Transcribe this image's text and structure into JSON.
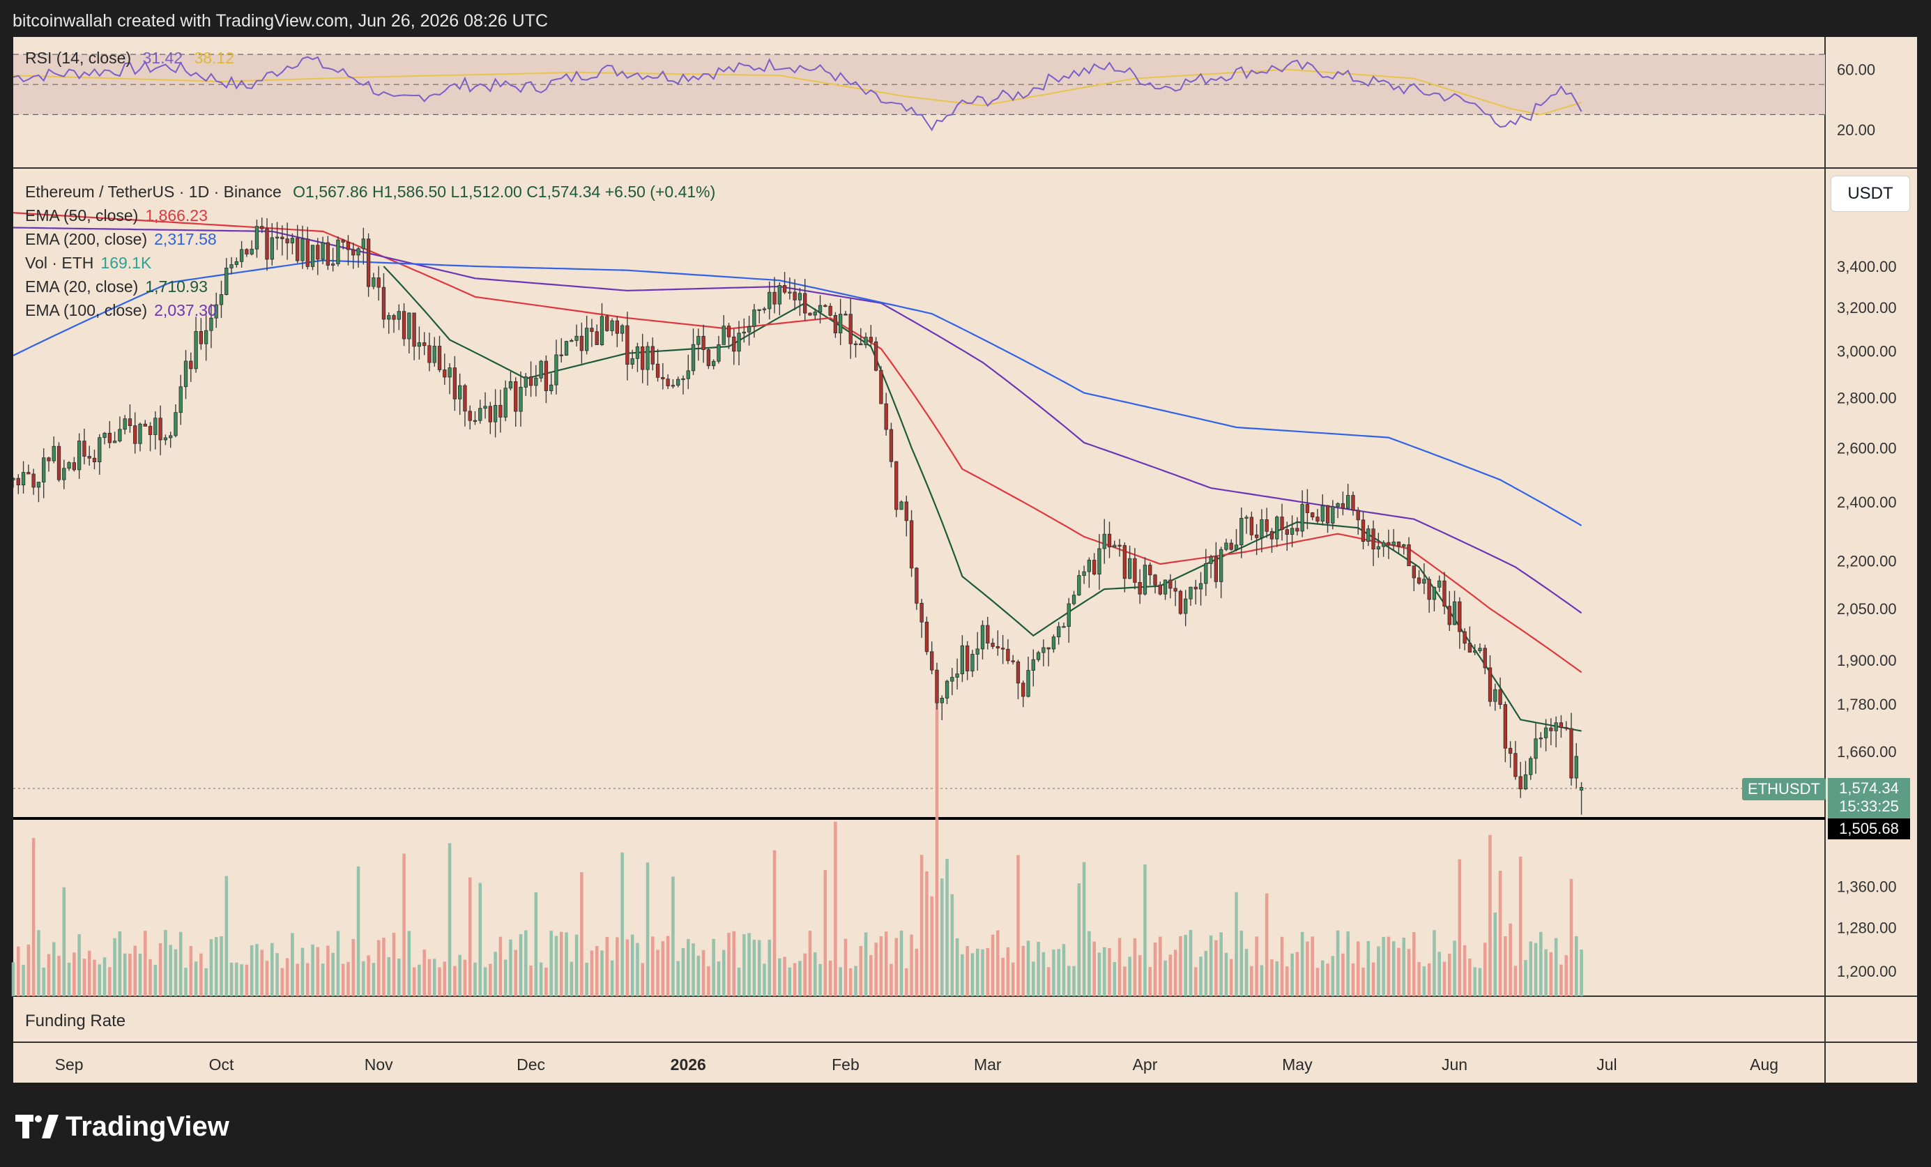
{
  "header": {
    "attribution": "bitcoinwallah created with TradingView.com, Jun 26, 2026 08:26 UTC"
  },
  "rsi_panel": {
    "label": "RSI (14, close)",
    "value": "31.42",
    "ma_value": "38.12",
    "ticks": [
      "60.00",
      "20.00"
    ]
  },
  "legend": {
    "symbol_line": "Ethereum / TetherUS · 1D · Binance",
    "ohlc": "O1,567.86  H1,586.50  L1,512.00  C1,574.34  +6.50 (+0.41%)",
    "items": [
      {
        "label": "EMA (50, close)",
        "value": "1,866.23",
        "color": "#e0373f"
      },
      {
        "label": "EMA (200, close)",
        "value": "2,317.58",
        "color": "#2f62e6"
      },
      {
        "label": "Vol · ETH",
        "value": "169.1K",
        "color": "#2aa298"
      },
      {
        "label": "EMA (20, close)",
        "value": "1,710.93",
        "color": "#1c5a3a"
      },
      {
        "label": "EMA (100, close)",
        "value": "2,037.30",
        "color": "#6a36b6"
      }
    ]
  },
  "currency_button": "USDT",
  "funding_label": "Funding Rate",
  "ticker_tag": "ETHUSDT",
  "last_price": "1,574.34",
  "countdown": "15:33:25",
  "horizontal_level": "1,505.68",
  "footer_brand": "TradingView",
  "colors": {
    "up": "#5d9c85",
    "down": "#d6776c",
    "background": "#f2e3d3",
    "frame": "#1e1e1e"
  },
  "chart_data": {
    "type": "candlestick",
    "symbol": "ETHUSDT",
    "interval": "1D",
    "y_axis_ticks": [
      3400,
      3200,
      3000,
      2800,
      2600,
      2400,
      2200,
      2050,
      1900,
      1780,
      1660,
      1360,
      1280,
      1200
    ],
    "y_axis_labels": [
      "3,400.00",
      "3,200.00",
      "3,000.00",
      "2,800.00",
      "2,600.00",
      "2,400.00",
      "2,200.00",
      "2,050.00",
      "1,900.00",
      "1,780.00",
      "1,660.00",
      "1,360.00",
      "1,280.00",
      "1,200.00"
    ],
    "x_axis_labels": [
      "Sep",
      "Oct",
      "Nov",
      "Dec",
      "2026",
      "Feb",
      "Mar",
      "Apr",
      "May",
      "Jun",
      "Jul",
      "Aug"
    ],
    "x_axis_label_days": [
      0,
      30,
      61,
      91,
      122,
      153,
      181,
      212,
      242,
      273,
      303,
      334
    ],
    "x_range_days": [
      -11,
      346
    ],
    "last_day": 298,
    "close_path": [
      [
        -11,
        2480
      ],
      [
        20,
        2720
      ],
      [
        34,
        3530
      ],
      [
        46,
        3480
      ],
      [
        58,
        3450
      ],
      [
        63,
        3150
      ],
      [
        70,
        3060
      ],
      [
        80,
        2720
      ],
      [
        92,
        2870
      ],
      [
        104,
        3100
      ],
      [
        118,
        2920
      ],
      [
        130,
        3050
      ],
      [
        143,
        3270
      ],
      [
        150,
        3150
      ],
      [
        158,
        3050
      ],
      [
        162,
        2520
      ],
      [
        166,
        2200
      ],
      [
        171,
        1790
      ],
      [
        180,
        1970
      ],
      [
        188,
        1850
      ],
      [
        196,
        2000
      ],
      [
        204,
        2260
      ],
      [
        210,
        2150
      ],
      [
        218,
        2070
      ],
      [
        225,
        2160
      ],
      [
        232,
        2310
      ],
      [
        242,
        2340
      ],
      [
        252,
        2380
      ],
      [
        258,
        2270
      ],
      [
        266,
        2160
      ],
      [
        276,
        1970
      ],
      [
        281,
        1800
      ],
      [
        286,
        1590
      ],
      [
        290,
        1690
      ],
      [
        294,
        1760
      ],
      [
        296,
        1640
      ],
      [
        298,
        1574
      ]
    ],
    "ema": [
      {
        "period": 20,
        "color": "#1c5a3a",
        "path": [
          [
            62,
            3400
          ],
          [
            75,
            3050
          ],
          [
            90,
            2880
          ],
          [
            110,
            2990
          ],
          [
            130,
            3020
          ],
          [
            145,
            3220
          ],
          [
            158,
            3020
          ],
          [
            166,
            2600
          ],
          [
            176,
            2150
          ],
          [
            190,
            1970
          ],
          [
            204,
            2110
          ],
          [
            215,
            2120
          ],
          [
            228,
            2220
          ],
          [
            242,
            2330
          ],
          [
            254,
            2310
          ],
          [
            266,
            2180
          ],
          [
            276,
            1950
          ],
          [
            286,
            1740
          ],
          [
            298,
            1711
          ]
        ]
      },
      {
        "period": 50,
        "color": "#e0373f",
        "path": [
          [
            -11,
            3680
          ],
          [
            50,
            3580
          ],
          [
            80,
            3250
          ],
          [
            110,
            3150
          ],
          [
            130,
            3100
          ],
          [
            150,
            3150
          ],
          [
            160,
            3010
          ],
          [
            176,
            2520
          ],
          [
            200,
            2280
          ],
          [
            215,
            2190
          ],
          [
            232,
            2230
          ],
          [
            250,
            2290
          ],
          [
            264,
            2240
          ],
          [
            280,
            2050
          ],
          [
            298,
            1866
          ]
        ]
      },
      {
        "period": 100,
        "color": "#6a36b6",
        "path": [
          [
            -11,
            3600
          ],
          [
            40,
            3580
          ],
          [
            60,
            3460
          ],
          [
            80,
            3340
          ],
          [
            110,
            3280
          ],
          [
            140,
            3300
          ],
          [
            160,
            3220
          ],
          [
            180,
            2950
          ],
          [
            200,
            2620
          ],
          [
            225,
            2450
          ],
          [
            250,
            2380
          ],
          [
            265,
            2340
          ],
          [
            285,
            2180
          ],
          [
            298,
            2037
          ]
        ]
      },
      {
        "period": 200,
        "color": "#2f62e6",
        "path": [
          [
            -11,
            2980
          ],
          [
            20,
            3320
          ],
          [
            50,
            3430
          ],
          [
            80,
            3400
          ],
          [
            110,
            3380
          ],
          [
            140,
            3330
          ],
          [
            170,
            3170
          ],
          [
            200,
            2820
          ],
          [
            230,
            2680
          ],
          [
            260,
            2640
          ],
          [
            282,
            2480
          ],
          [
            298,
            2318
          ]
        ]
      }
    ],
    "volume_peaks": {
      "day": 171,
      "relative": 1.0,
      "jun_peak_day": 282,
      "jun_relative": 0.6
    },
    "rsi": {
      "ticks": [
        60,
        20
      ],
      "bands": [
        70,
        50,
        30
      ],
      "path": [
        [
          -11,
          55
        ],
        [
          20,
          62
        ],
        [
          35,
          48
        ],
        [
          46,
          68
        ],
        [
          58,
          52
        ],
        [
          64,
          38
        ],
        [
          78,
          50
        ],
        [
          92,
          48
        ],
        [
          105,
          60
        ],
        [
          120,
          55
        ],
        [
          140,
          64
        ],
        [
          150,
          58
        ],
        [
          158,
          42
        ],
        [
          165,
          32
        ],
        [
          171,
          22
        ],
        [
          176,
          37
        ],
        [
          188,
          44
        ],
        [
          195,
          56
        ],
        [
          206,
          62
        ],
        [
          215,
          48
        ],
        [
          230,
          58
        ],
        [
          242,
          62
        ],
        [
          252,
          55
        ],
        [
          262,
          48
        ],
        [
          272,
          42
        ],
        [
          280,
          33
        ],
        [
          282,
          18
        ],
        [
          288,
          30
        ],
        [
          292,
          45
        ],
        [
          294,
          50
        ],
        [
          296,
          40
        ],
        [
          298,
          31
        ]
      ],
      "ma_path": [
        [
          -11,
          56
        ],
        [
          30,
          52
        ],
        [
          60,
          55
        ],
        [
          100,
          58
        ],
        [
          140,
          56
        ],
        [
          165,
          42
        ],
        [
          180,
          36
        ],
        [
          210,
          54
        ],
        [
          240,
          60
        ],
        [
          265,
          54
        ],
        [
          284,
          34
        ],
        [
          290,
          30
        ],
        [
          298,
          38
        ]
      ]
    }
  }
}
